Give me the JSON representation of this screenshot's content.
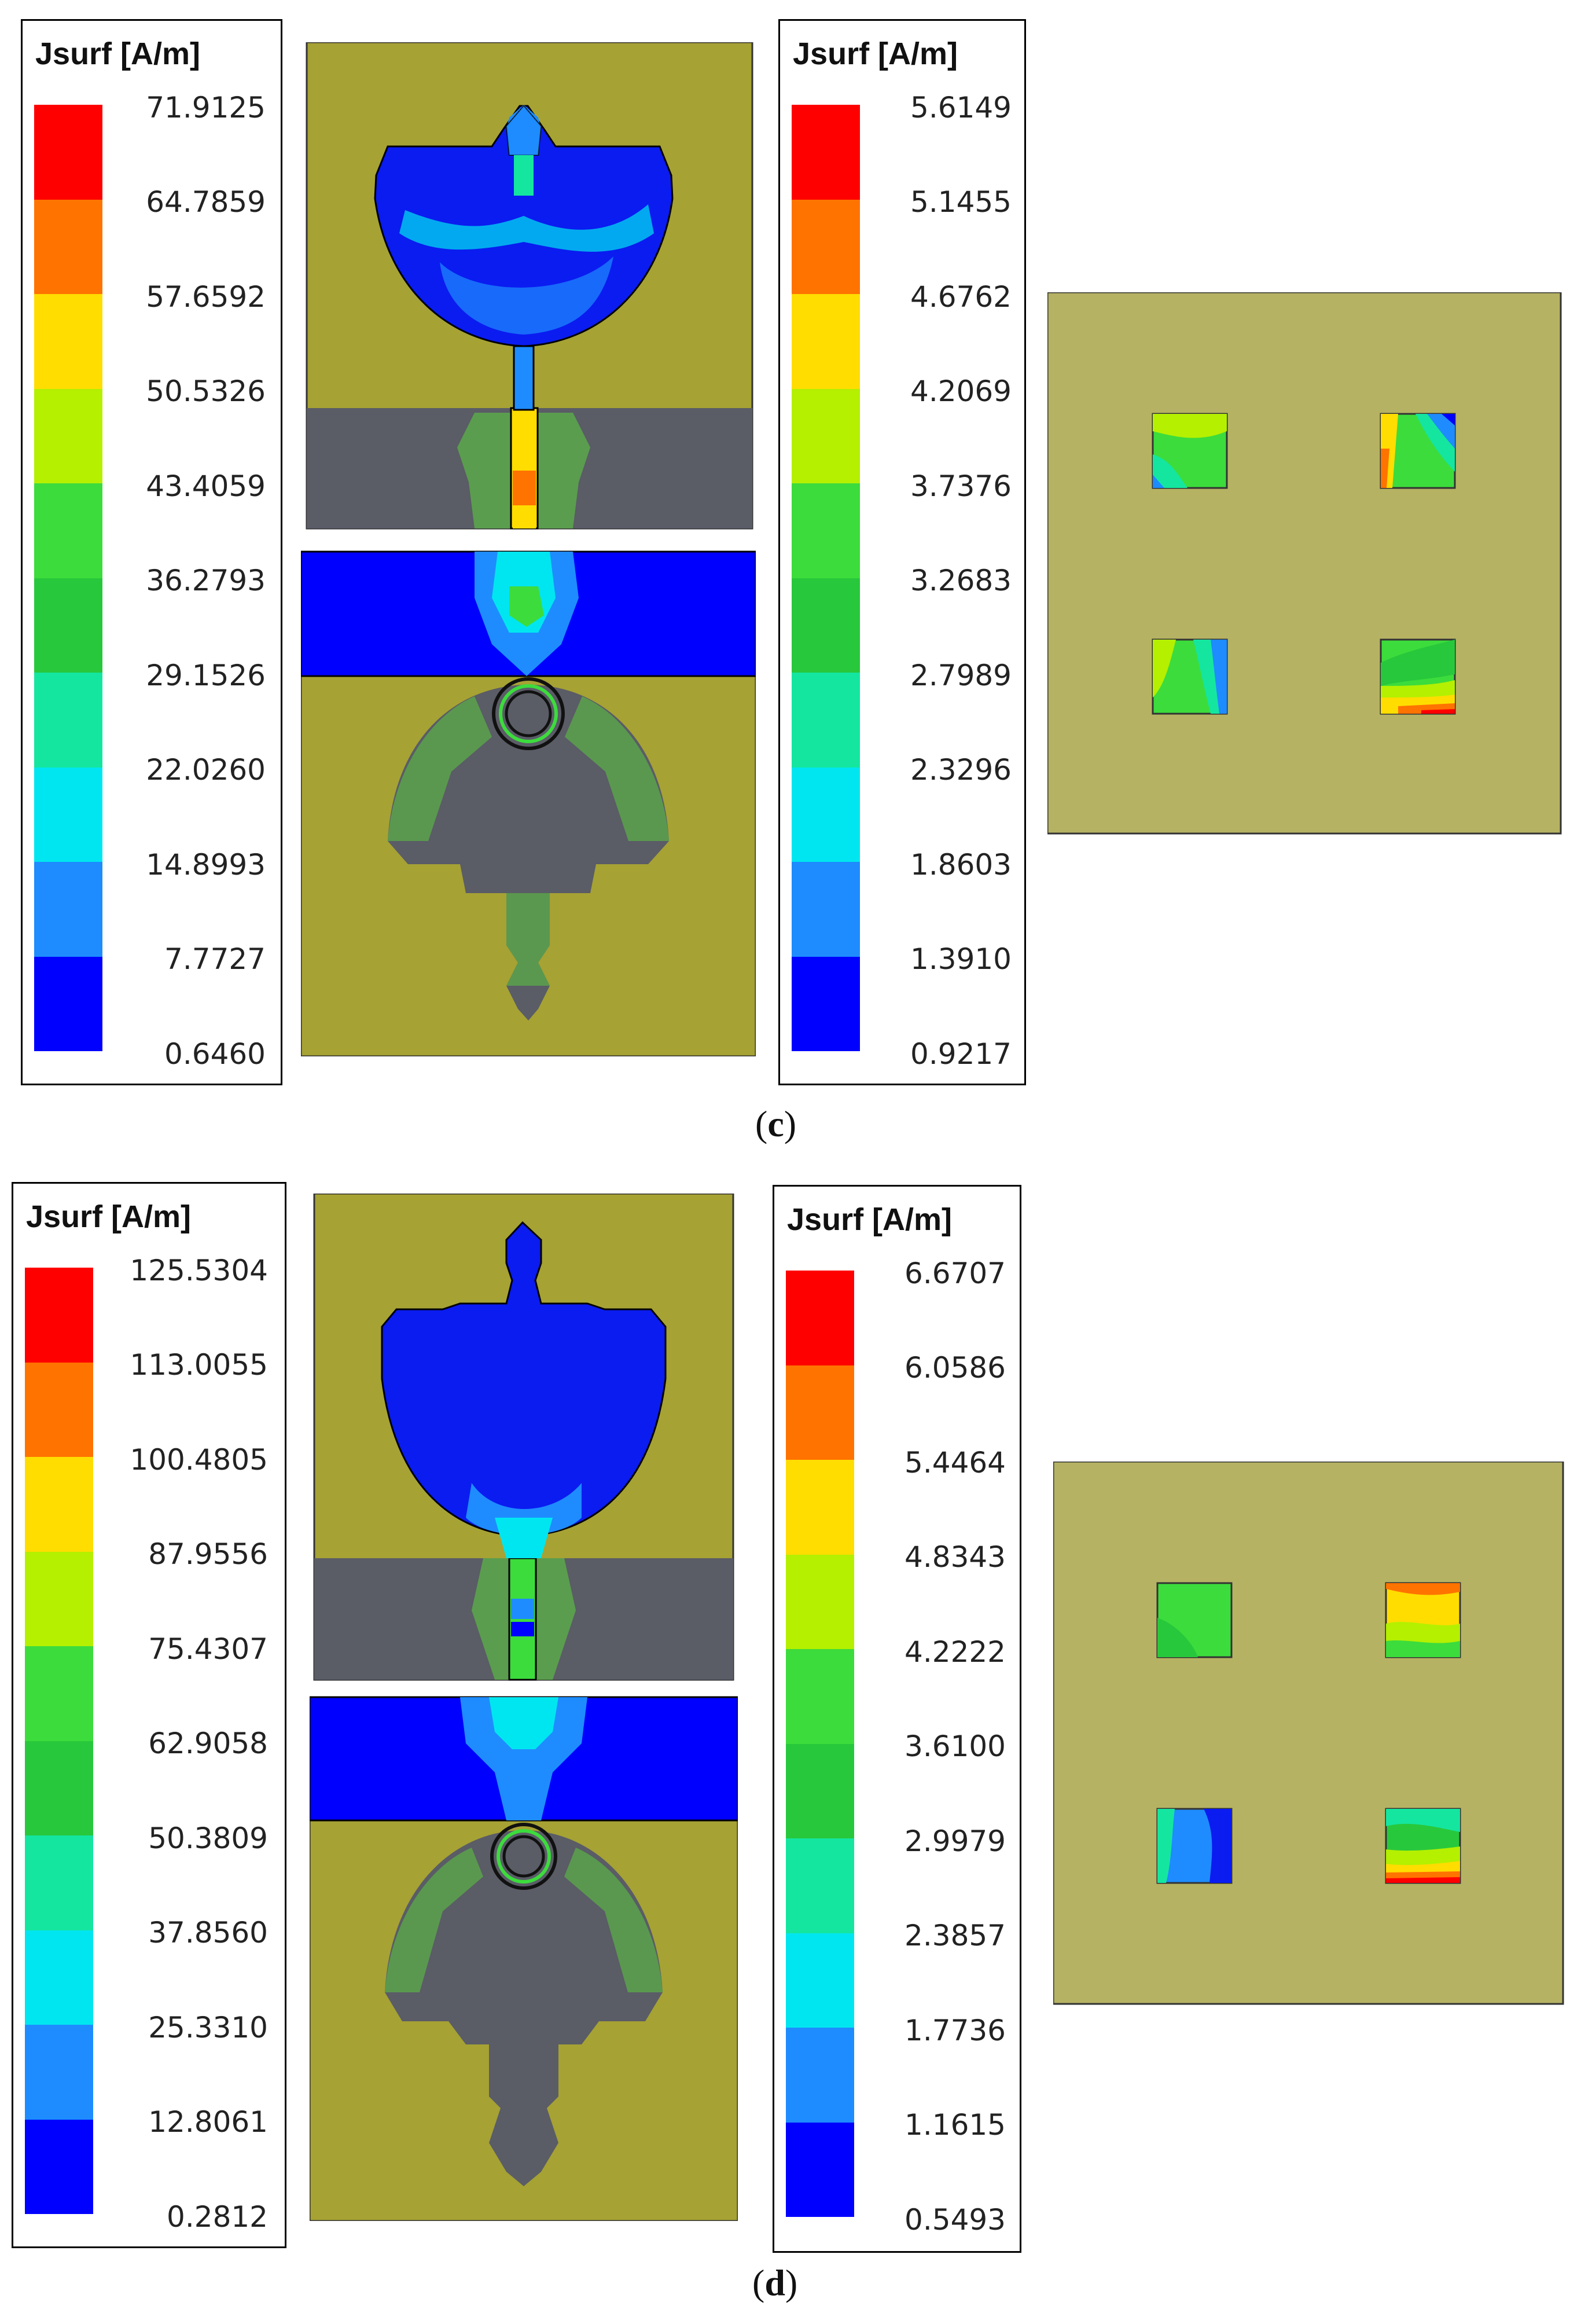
{
  "panels": [
    {
      "caption_letter": "c",
      "legend_main": {
        "title": "Jsurf [A/m]",
        "ticks": [
          "71.9125",
          "64.7859",
          "57.6592",
          "50.5326",
          "43.4059",
          "36.2793",
          "29.1526",
          "22.0260",
          "14.8993",
          "7.7727",
          "0.6460"
        ]
      },
      "legend_mirror": {
        "title": "Jsurf [A/m]",
        "ticks": [
          "5.6149",
          "5.1455",
          "4.6762",
          "4.2069",
          "3.7376",
          "3.2683",
          "2.7989",
          "2.3296",
          "1.8603",
          "1.3910",
          "0.9217"
        ]
      }
    },
    {
      "caption_letter": "d",
      "legend_main": {
        "title": "Jsurf [A/m]",
        "ticks": [
          "125.5304",
          "113.0055",
          "100.4805",
          "87.9556",
          "75.4307",
          "62.9058",
          "50.3809",
          "37.8560",
          "25.3310",
          "12.8061",
          "0.2812"
        ]
      },
      "legend_mirror": {
        "title": "Jsurf [A/m]",
        "ticks": [
          "6.6707",
          "6.0586",
          "5.4464",
          "4.8343",
          "4.2222",
          "3.6100",
          "2.9979",
          "2.3857",
          "1.7736",
          "1.1615",
          "0.5493"
        ]
      }
    }
  ],
  "colormap": [
    "#ff0000",
    "#ff7300",
    "#ffdd00",
    "#b4f000",
    "#3cdc3c",
    "#28c83c",
    "#14e6a0",
    "#00e6f0",
    "#1e8cff",
    "#0000ff"
  ]
}
